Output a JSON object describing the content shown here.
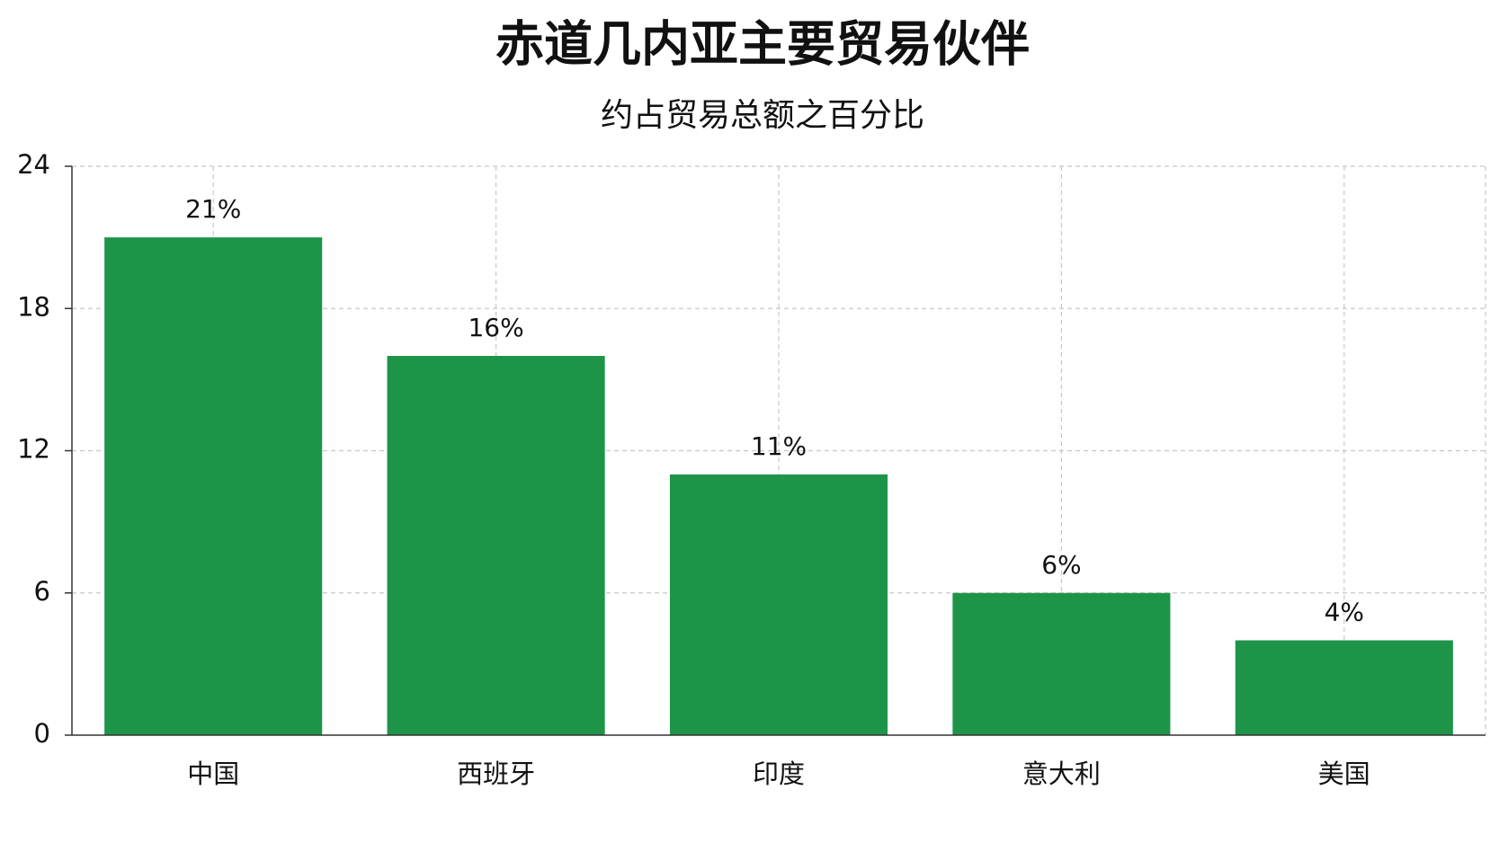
{
  "chart_data": {
    "type": "bar",
    "title": "赤道几内亚主要贸易伙伴",
    "subtitle": "约占贸易总额之百分比",
    "categories": [
      "中国",
      "西班牙",
      "印度",
      "意大利",
      "美国"
    ],
    "values": [
      21,
      16,
      11,
      6,
      4
    ],
    "value_labels": [
      "21%",
      "16%",
      "11%",
      "6%",
      "4%"
    ],
    "color": "#1e9449",
    "ylim": [
      0,
      24
    ],
    "yticks": [
      0,
      6,
      12,
      18,
      24
    ],
    "grid": true
  }
}
